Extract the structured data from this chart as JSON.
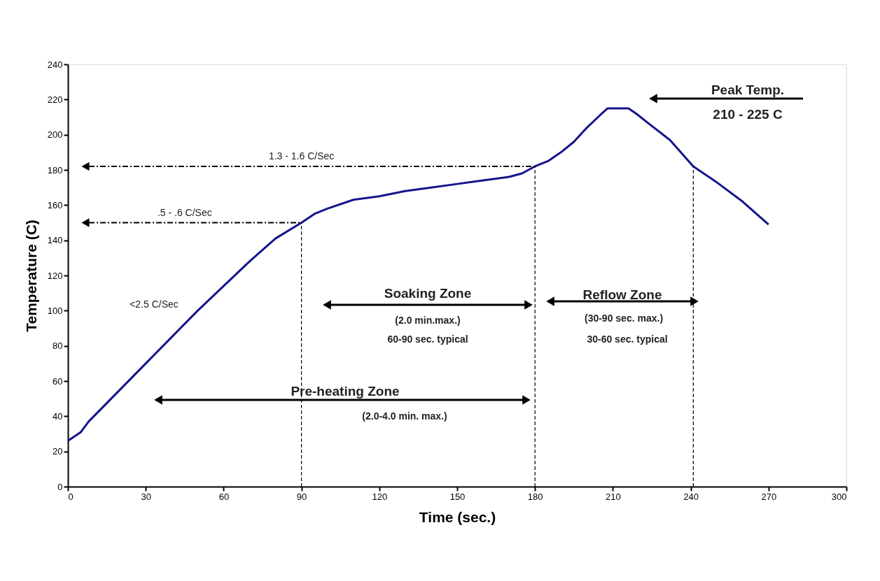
{
  "chart_data": {
    "type": "line",
    "xlabel": "Time (sec.)",
    "ylabel": "Temperature (C)",
    "xlim": [
      0,
      300
    ],
    "xticks": [
      0,
      30,
      60,
      90,
      120,
      150,
      180,
      210,
      240,
      270,
      300
    ],
    "ylim": [
      0,
      240
    ],
    "yticks": [
      0,
      20,
      40,
      60,
      80,
      100,
      120,
      140,
      160,
      180,
      200,
      220,
      240
    ],
    "grid": false,
    "marker": "none",
    "line_style": "solid",
    "series": [
      {
        "color": "#14148c",
        "x": [
          0,
          5,
          8,
          10,
          20,
          30,
          40,
          50,
          60,
          70,
          80,
          90,
          95,
          100,
          110,
          120,
          130,
          140,
          150,
          160,
          170,
          175,
          180,
          185,
          190,
          195,
          200,
          205,
          208,
          216,
          219,
          225,
          232,
          241,
          250,
          260,
          270
        ],
        "values": [
          26,
          31,
          37,
          40,
          55,
          70,
          85,
          100,
          114,
          128,
          141,
          150,
          155,
          158,
          163,
          165,
          168,
          170,
          172,
          174,
          176,
          178,
          182,
          185,
          190,
          196,
          204,
          211,
          215,
          215,
          212,
          205,
          197,
          182,
          173,
          162,
          149
        ]
      }
    ],
    "ref_lines": [
      {
        "axis": "x",
        "value": 90,
        "line_style": "dashed"
      },
      {
        "axis": "x",
        "value": 180,
        "line_style": "dashed"
      },
      {
        "axis": "x",
        "value": 241,
        "line_style": "dashed"
      },
      {
        "axis": "y",
        "value": 150,
        "label": ".5 - .6 C/Sec",
        "line_style": "dashed"
      },
      {
        "axis": "y",
        "value": 182,
        "label": "1.3 - 1.6 C/Sec",
        "line_style": "dashed"
      }
    ],
    "annotations": [
      "<2.5 C/Sec",
      "Soaking Zone",
      "(2.0 min.max.)",
      "60-90 sec. typical",
      "Reflow Zone",
      "(30-90 sec. max.)",
      "30-60 sec. typical",
      "Pre-heating Zone",
      "(2.0-4.0 min. max.)",
      "Peak Temp.",
      "210 - 225 C"
    ]
  }
}
